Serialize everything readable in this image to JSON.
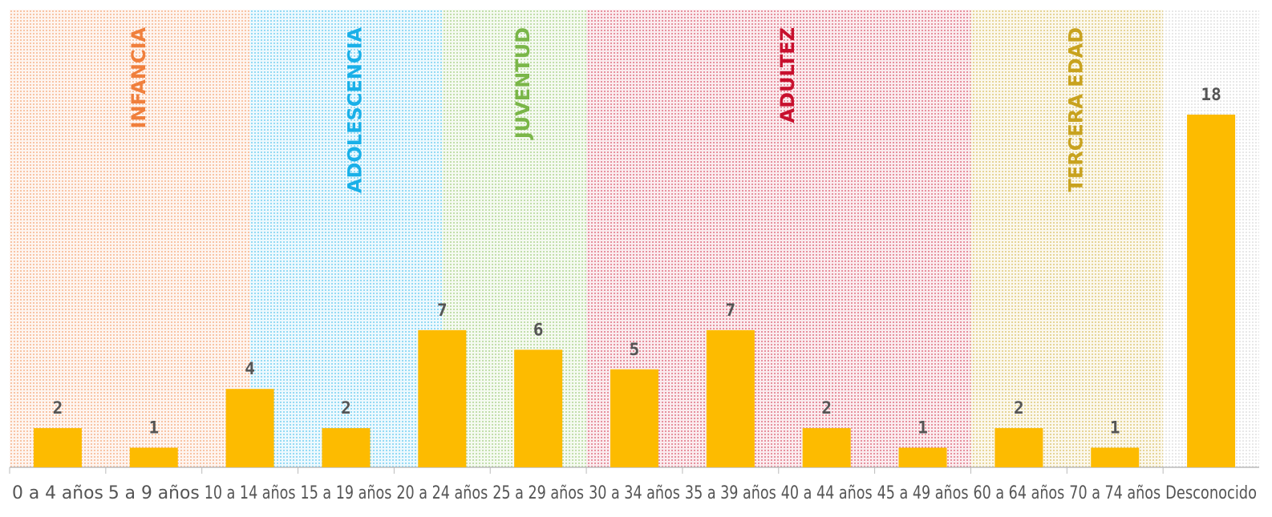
{
  "chart_data": {
    "type": "bar",
    "categories": [
      "0 a 4 años",
      "5 a 9 años",
      "10 a 14 años",
      "15 a 19 años",
      "20 a 24 años",
      "25 a 29 años",
      "30 a 34 años",
      "35 a 39 años",
      "40 a 44 años",
      "45 a 49 años",
      "60 a 64 años",
      "70 a 74 años",
      "Desconocido"
    ],
    "values": [
      2,
      1,
      4,
      2,
      7,
      6,
      5,
      7,
      2,
      1,
      2,
      1,
      18
    ],
    "color": "#fdbb00",
    "bands": [
      {
        "label": "INFANCIA",
        "from": 0,
        "to": 2,
        "color": "#f07f3c"
      },
      {
        "label": "ADOLESCENCIA",
        "from": 2,
        "to": 4,
        "color": "#1ab0e8"
      },
      {
        "label": "JUVENTUD",
        "from": 4,
        "to": 5,
        "color": "#7ab648"
      },
      {
        "label": "ADULTEZ",
        "from": 6,
        "to": 9,
        "color": "#c8102e"
      },
      {
        "label": "TERCERA EDAD",
        "from": 10,
        "to": 11,
        "color": "#c8a21e"
      }
    ]
  }
}
